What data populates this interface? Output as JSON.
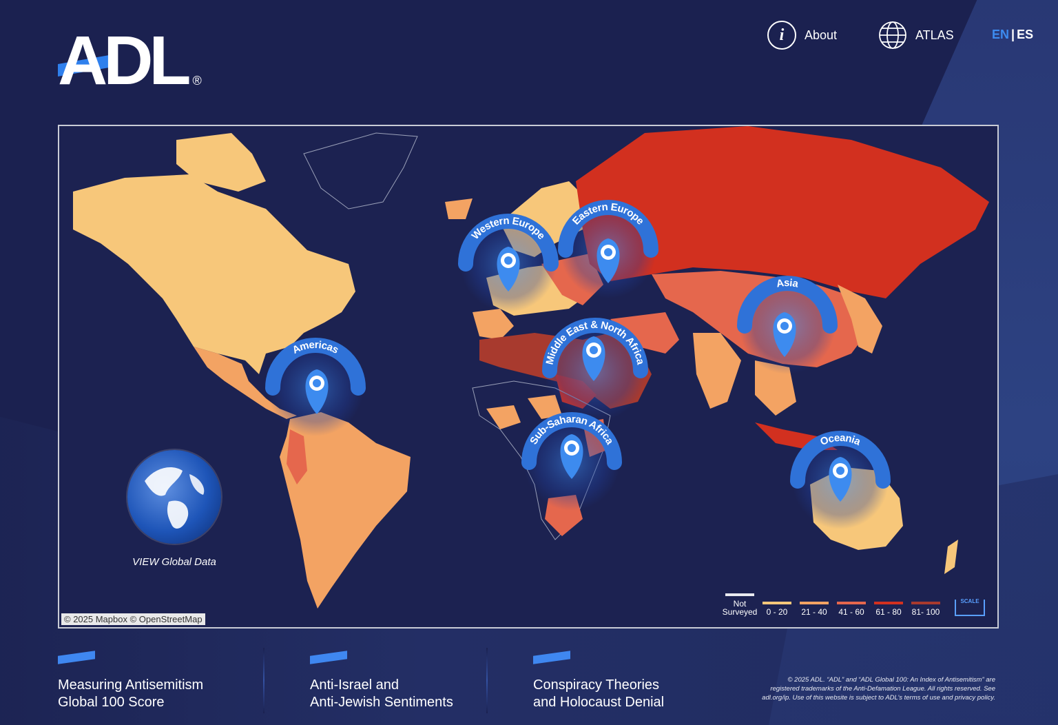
{
  "brand": {
    "name": "ADL",
    "registered": "®"
  },
  "nav": {
    "about_label": "About",
    "atlas_label": "ATLAS",
    "lang_en": "EN",
    "lang_sep": "|",
    "lang_es": "ES"
  },
  "map": {
    "attribution": "© 2025 Mapbox  © OpenStreetMap",
    "view_global_label": "VIEW Global Data",
    "regions": [
      {
        "label": "Western Europe"
      },
      {
        "label": "Eastern Europe"
      },
      {
        "label": "Asia"
      },
      {
        "label": "Middle East & North Africa"
      },
      {
        "label": "Americas"
      },
      {
        "label": "Sub-Saharan Africa"
      },
      {
        "label": "Oceania"
      }
    ],
    "legend": [
      {
        "label": "Not Surveyed",
        "color": "#e9eaf0"
      },
      {
        "label": "0 - 20",
        "color": "#f7c77a"
      },
      {
        "label": "21 - 40",
        "color": "#f3a363"
      },
      {
        "label": "41 - 60",
        "color": "#e5674d"
      },
      {
        "label": "61 - 80",
        "color": "#d2301f"
      },
      {
        "label": "81- 100",
        "color": "#a83a2e"
      }
    ],
    "scale_label": "SCALE"
  },
  "footer": {
    "items": [
      {
        "line1": "Measuring Antisemitism",
        "line2": "Global 100 Score"
      },
      {
        "line1": "Anti-Israel and",
        "line2": "Anti-Jewish Sentiments"
      },
      {
        "line1": "Conspiracy Theories",
        "line2": "and Holocaust Denial"
      }
    ],
    "legal": "© 2025 ADL. “ADL” and “ADL Global 100: An Index of Antisemitism” are registered trademarks of the Anti-Defamation League. All rights reserved. See adl.org/ip. Use of this website is subject to ADL’s terms of use and privacy policy."
  },
  "colors": {
    "background": "#1b2150",
    "accent": "#2f80ed",
    "pin": "#3d8bef"
  }
}
